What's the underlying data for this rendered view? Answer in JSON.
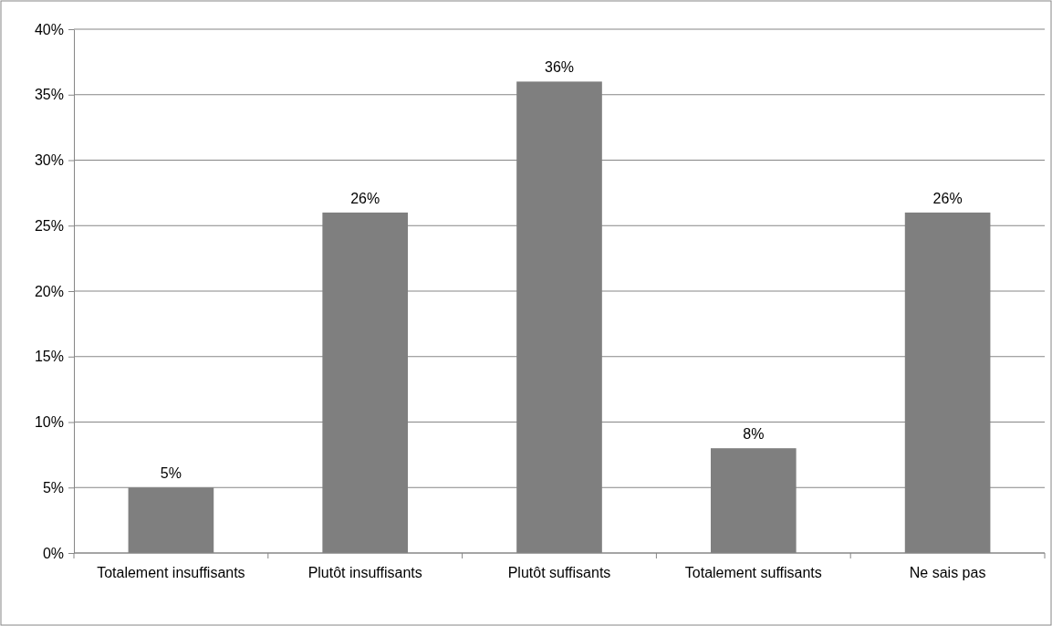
{
  "chart_data": {
    "type": "bar",
    "categories": [
      "Totalement insuffisants",
      "Plutôt insuffisants",
      "Plutôt suffisants",
      "Totalement suffisants",
      "Ne sais pas"
    ],
    "values": [
      5,
      26,
      36,
      8,
      26
    ],
    "color": "#7f7f7f",
    "ylim": [
      0,
      40
    ],
    "yticks": [
      {
        "value": 0,
        "label": "0%"
      },
      {
        "value": 5,
        "label": "5%"
      },
      {
        "value": 10,
        "label": "10%"
      },
      {
        "value": 15,
        "label": "15%"
      },
      {
        "value": 20,
        "label": "20%"
      },
      {
        "value": 25,
        "label": "25%"
      },
      {
        "value": 30,
        "label": "30%"
      },
      {
        "value": 35,
        "label": "35%"
      },
      {
        "value": 40,
        "label": "40%"
      }
    ],
    "value_labels": [
      "5%",
      "26%",
      "36%",
      "8%",
      "26%"
    ],
    "grid": "y"
  }
}
